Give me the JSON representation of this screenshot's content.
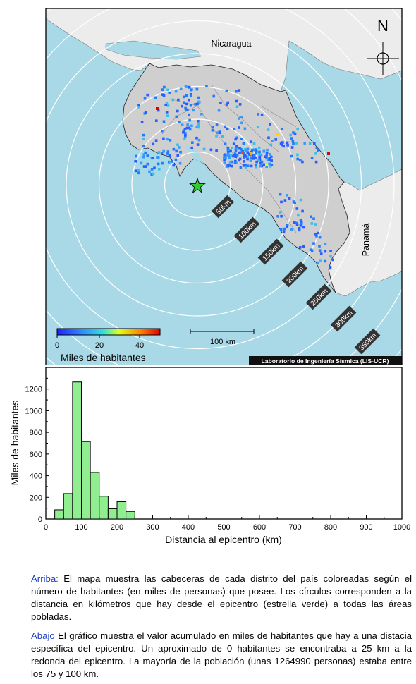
{
  "map": {
    "countries": {
      "north": "Nicaragua",
      "south": "Panamá"
    },
    "north_arrow": "N",
    "distance_rings": [
      "50km",
      "100km",
      "150km",
      "200km",
      "250km",
      "300km",
      "350km"
    ],
    "scale_bar": "100 km",
    "colorbar": {
      "ticks": [
        "0",
        "20",
        "40"
      ],
      "label": "Miles de habitantes"
    },
    "credit": "Laboratorio de Ingeniería Sísmica (LIS-UCR)",
    "colors": {
      "sea": "#a9d8e6",
      "land": "#cfcfcf",
      "neighbors": "#ececec",
      "epicenter": "#33cc33",
      "histogram": "#90ee90"
    }
  },
  "chart_data": {
    "type": "bar",
    "xlabel": "Distancia al epicentro (km)",
    "ylabel": "Miles de habitantes",
    "xlim": [
      0,
      1000
    ],
    "ylim": [
      0,
      1400
    ],
    "x_ticks": [
      "0",
      "100",
      "200",
      "300",
      "400",
      "500",
      "600",
      "700",
      "800",
      "900",
      "1000"
    ],
    "y_ticks": [
      "0",
      "200",
      "400",
      "600",
      "800",
      "1000",
      "1200"
    ],
    "bin_width": 25,
    "bins": [
      {
        "start": 25,
        "value": 85
      },
      {
        "start": 50,
        "value": 235
      },
      {
        "start": 75,
        "value": 1265
      },
      {
        "start": 100,
        "value": 715
      },
      {
        "start": 125,
        "value": 430
      },
      {
        "start": 150,
        "value": 210
      },
      {
        "start": 175,
        "value": 95
      },
      {
        "start": 200,
        "value": 160
      },
      {
        "start": 225,
        "value": 70
      }
    ]
  },
  "captions": {
    "top_lead": "Arriba:",
    "top_text": " El mapa muestra las cabeceras de cada distrito del país coloreadas según el número de habitantes (en miles de personas) que posee.  Los círculos corresponden a la distancia en kilómetros que hay desde el epicentro (estrella verde) a todas las áreas pobladas.",
    "bottom_lead": "Abajo",
    "bottom_text": " El gráfico muestra el valor acumulado en miles de habitantes que hay a una distacia específica del epicentro.  Un aproximado de 0 habitantes se encontraba a 25 km a la redonda del epicentro.  La mayoría de la población (unas 1264990 personas) estaba entre los 75 y 100 km."
  }
}
